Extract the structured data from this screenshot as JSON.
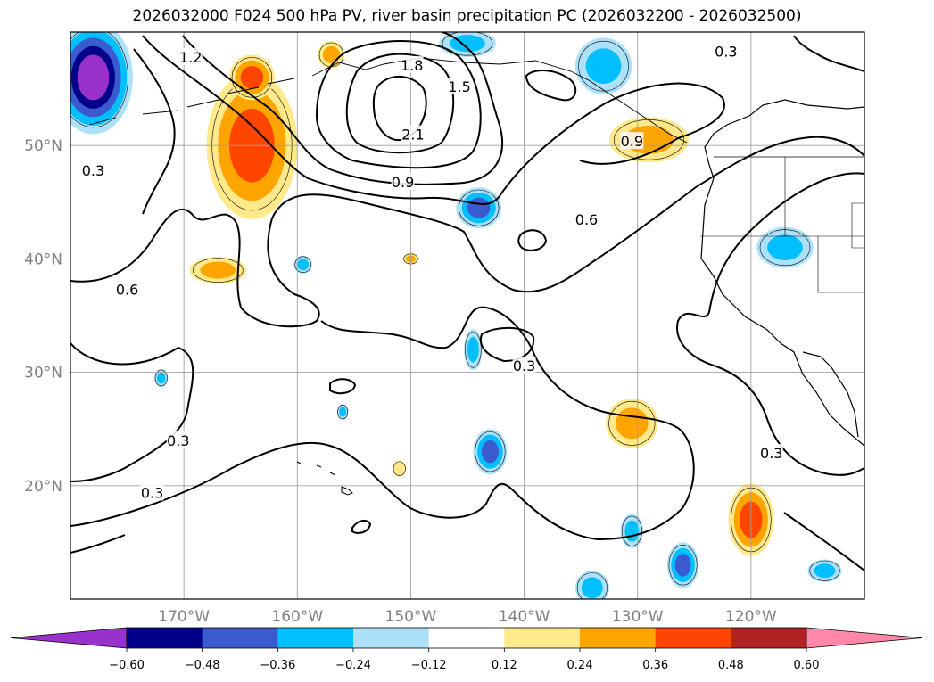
{
  "title": "2026032000 F024 500 hPa PV, river basin precipitation PC (2026032200 - 2026032500)",
  "chart_data": {
    "type": "heatmap",
    "title": "2026032000 F024 500 hPa PV, river basin precipitation PC (2026032200 - 2026032500)",
    "map_extent": {
      "lon": [
        -180,
        -110
      ],
      "lat": [
        10,
        60
      ]
    },
    "lat_ticks": [
      {
        "value": 20,
        "label": "20°N"
      },
      {
        "value": 30,
        "label": "30°N"
      },
      {
        "value": 40,
        "label": "40°N"
      },
      {
        "value": 50,
        "label": "50°N"
      }
    ],
    "lon_ticks": [
      {
        "value": -170,
        "label": "170°W"
      },
      {
        "value": -160,
        "label": "160°W"
      },
      {
        "value": -150,
        "label": "150°W"
      },
      {
        "value": -140,
        "label": "140°W"
      },
      {
        "value": -130,
        "label": "130°W"
      },
      {
        "value": -120,
        "label": "120°W"
      }
    ],
    "grid": true,
    "colorbar": {
      "placement": "bottom",
      "extend": "both",
      "levels": [
        -0.6,
        -0.48,
        -0.36,
        -0.24,
        -0.12,
        0.12,
        0.24,
        0.36,
        0.48,
        0.6
      ],
      "tick_labels": [
        "−0.60",
        "−0.48",
        "−0.36",
        "−0.24",
        "−0.12",
        "0.12",
        "0.24",
        "0.36",
        "0.48",
        "0.60"
      ],
      "colors": [
        "#9932CC",
        "#00008B",
        "#3A5BD0",
        "#00BFFF",
        "#ADE1FA",
        "#FFFFFF",
        "#FFE98A",
        "#FFA500",
        "#FF4500",
        "#B22222",
        "#FF88AA"
      ]
    },
    "contour_field": "500 hPa PV",
    "contour_levels": [
      0.3,
      0.6,
      0.9,
      1.2,
      1.5,
      1.8,
      2.1
    ],
    "contour_labels": [
      {
        "text": "2.1",
        "lon": -149.8,
        "lat": 51.0
      },
      {
        "text": "1.8",
        "lon": -149.9,
        "lat": 57.1
      },
      {
        "text": "1.5",
        "lon": -145.7,
        "lat": 55.2
      },
      {
        "text": "1.2",
        "lon": -169.4,
        "lat": 57.8
      },
      {
        "text": "0.9",
        "lon": -150.7,
        "lat": 46.8
      },
      {
        "text": "0.9",
        "lon": -130.5,
        "lat": 50.4
      },
      {
        "text": "0.6",
        "lon": -134.5,
        "lat": 43.5
      },
      {
        "text": "0.6",
        "lon": -175.0,
        "lat": 37.3
      },
      {
        "text": "0.3",
        "lon": -122.2,
        "lat": 58.3
      },
      {
        "text": "0.3",
        "lon": -178.0,
        "lat": 47.8
      },
      {
        "text": "0.3",
        "lon": -140.0,
        "lat": 30.6
      },
      {
        "text": "0.3",
        "lon": -170.5,
        "lat": 24.0
      },
      {
        "text": "0.3",
        "lon": -172.8,
        "lat": 19.4
      },
      {
        "text": "0.3",
        "lon": -118.2,
        "lat": 22.9
      }
    ],
    "precip_pc_anomalies": [
      {
        "lon": -178,
        "lat": 56,
        "rx": 3.5,
        "ry": 5,
        "value": -0.62
      },
      {
        "lon": -164,
        "lat": 50,
        "rx": 4,
        "ry": 6.5,
        "value": 0.42
      },
      {
        "lon": -164,
        "lat": 56,
        "rx": 2,
        "ry": 2,
        "value": 0.4
      },
      {
        "lon": -167,
        "lat": 39,
        "rx": 2.5,
        "ry": 1.2,
        "value": 0.3
      },
      {
        "lon": -144,
        "lat": 44.5,
        "rx": 2,
        "ry": 1.8,
        "value": -0.4
      },
      {
        "lon": -133,
        "lat": 57,
        "rx": 2.5,
        "ry": 2.5,
        "value": -0.3
      },
      {
        "lon": -129,
        "lat": 50.5,
        "rx": 3.5,
        "ry": 2,
        "value": 0.34
      },
      {
        "lon": -117,
        "lat": 41,
        "rx": 2.5,
        "ry": 1.8,
        "value": -0.3
      },
      {
        "lon": -130.5,
        "lat": 25.5,
        "rx": 2.3,
        "ry": 2.2,
        "value": 0.3
      },
      {
        "lon": -143,
        "lat": 23,
        "rx": 1.5,
        "ry": 2,
        "value": -0.42
      },
      {
        "lon": -120,
        "lat": 17,
        "rx": 2,
        "ry": 3.2,
        "value": 0.43
      },
      {
        "lon": -126,
        "lat": 13,
        "rx": 1.4,
        "ry": 2,
        "value": -0.38
      },
      {
        "lon": -130.5,
        "lat": 16,
        "rx": 1,
        "ry": 1.5,
        "value": -0.3
      },
      {
        "lon": -134,
        "lat": 11,
        "rx": 1.5,
        "ry": 1.5,
        "value": -0.3
      },
      {
        "lon": -144.5,
        "lat": 32,
        "rx": 0.8,
        "ry": 1.8,
        "value": -0.3
      },
      {
        "lon": -113.5,
        "lat": 12.5,
        "rx": 1.5,
        "ry": 1,
        "value": -0.25
      },
      {
        "lon": -159.5,
        "lat": 39.5,
        "rx": 0.8,
        "ry": 0.8,
        "value": -0.3
      },
      {
        "lon": -172,
        "lat": 29.5,
        "rx": 0.6,
        "ry": 0.8,
        "value": -0.25
      },
      {
        "lon": -156,
        "lat": 26.5,
        "rx": 0.5,
        "ry": 0.7,
        "value": -0.25
      },
      {
        "lon": -150,
        "lat": 40,
        "rx": 0.7,
        "ry": 0.5,
        "value": 0.26
      },
      {
        "lon": -151,
        "lat": 21.5,
        "rx": 0.6,
        "ry": 0.7,
        "value": 0.2
      },
      {
        "lon": -157,
        "lat": 58,
        "rx": 1.2,
        "ry": 1.2,
        "value": 0.3
      },
      {
        "lon": -145,
        "lat": 59,
        "rx": 2.5,
        "ry": 1.2,
        "value": -0.25
      }
    ]
  }
}
